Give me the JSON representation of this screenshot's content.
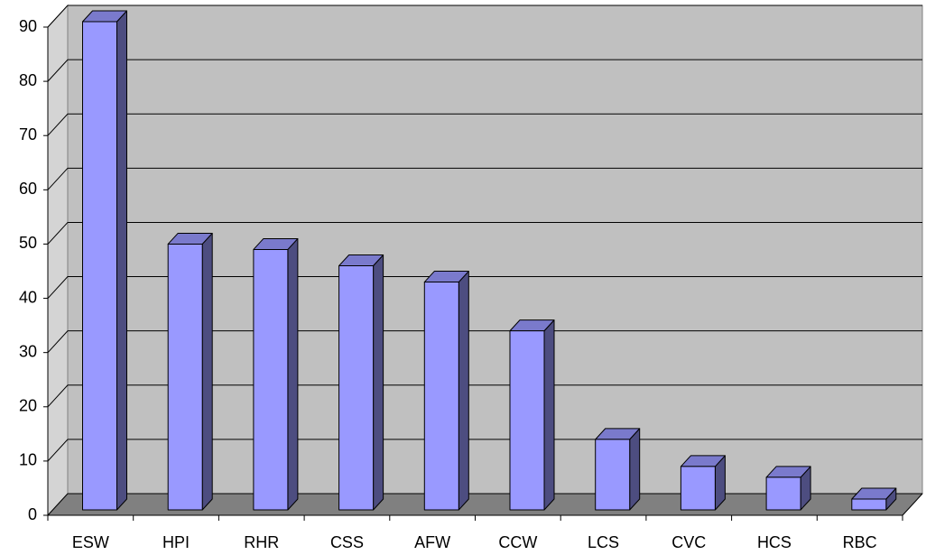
{
  "chart_data": {
    "type": "bar3d",
    "categories": [
      "ESW",
      "HPI",
      "RHR",
      "CSS",
      "AFW",
      "CCW",
      "LCS",
      "CVC",
      "HCS",
      "RBC"
    ],
    "values": [
      90,
      49,
      48,
      45,
      42,
      33,
      13,
      8,
      6,
      2
    ],
    "color": "#9999ff",
    "ylim": [
      0,
      90
    ],
    "yticks": [
      0,
      10,
      20,
      30,
      40,
      50,
      60,
      70,
      80,
      90
    ],
    "grid": true
  }
}
